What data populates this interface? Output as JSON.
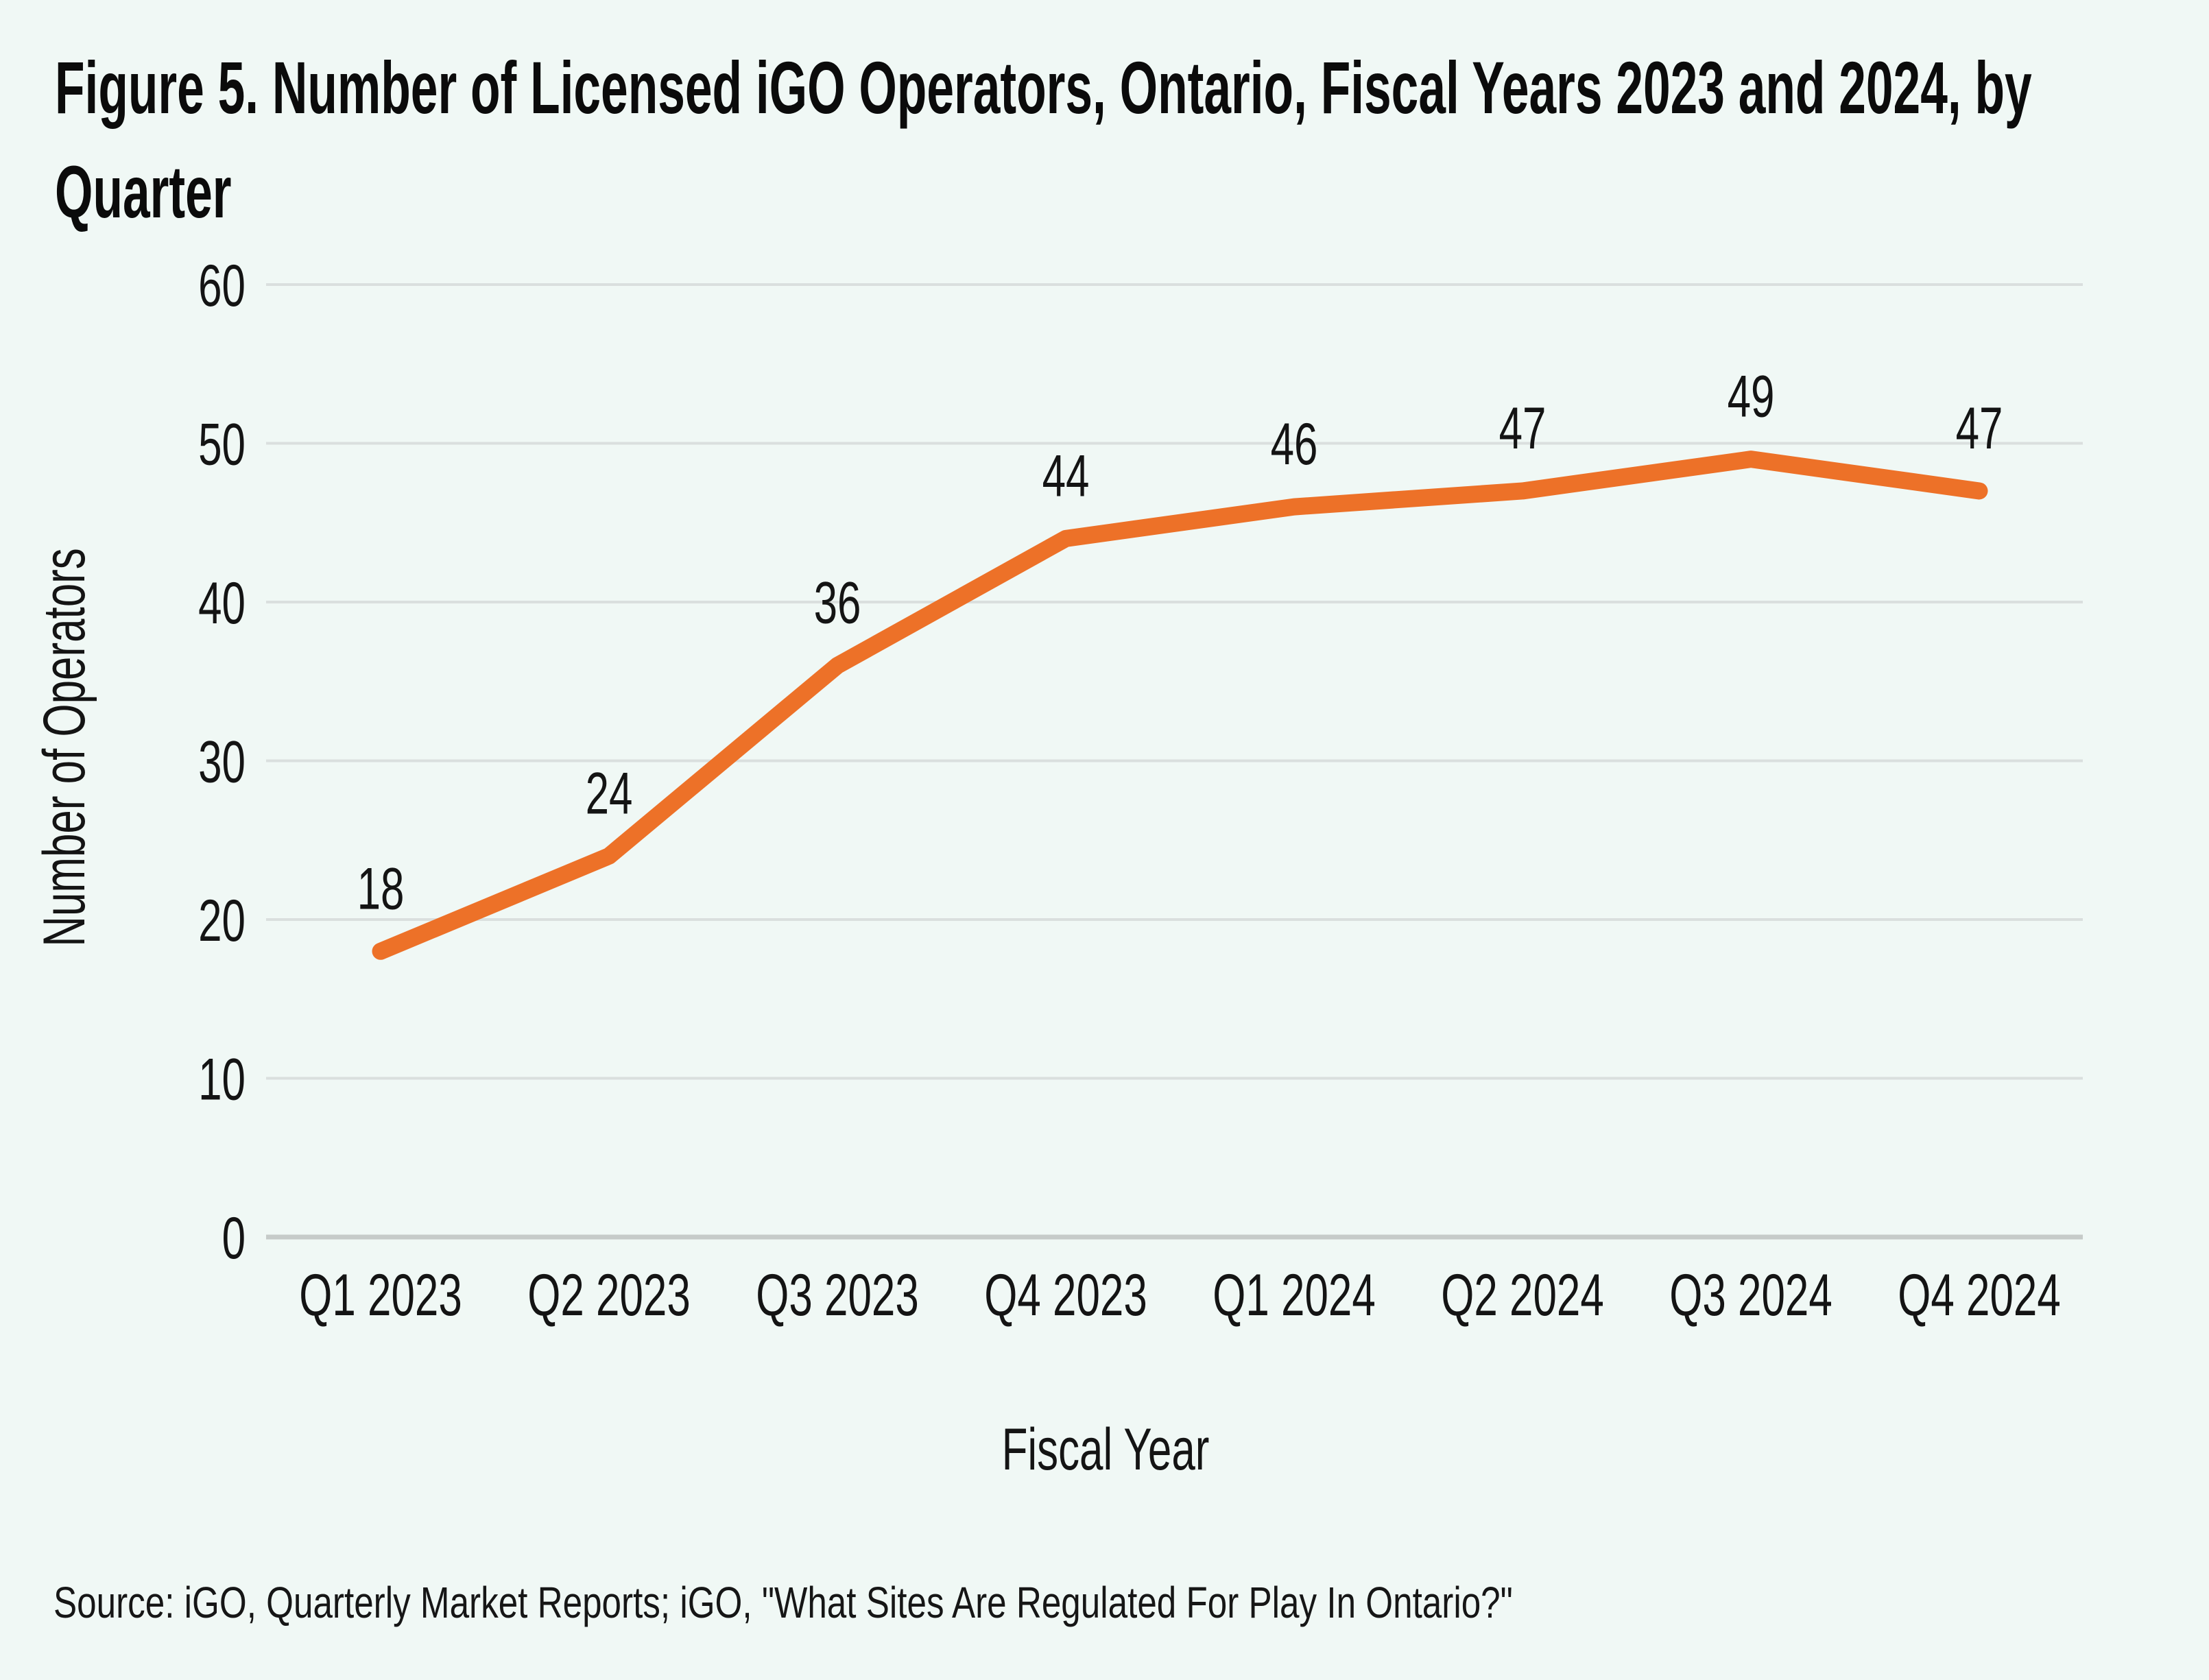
{
  "title_lines": [
    "Figure 5. Number of Licensed iGO Operators, Ontario, Fiscal Years 2023 and 2024, by",
    "Quarter"
  ],
  "source": "Source: iGO, Quarterly Market Reports; iGO, \"What Sites Are Regulated For Play In Ontario?\"",
  "chart_data": {
    "type": "line",
    "title": "Figure 5. Number of Licensed iGO Operators, Ontario, Fiscal Years 2023 and 2024, by Quarter",
    "categories": [
      "Q1 2023",
      "Q2 2023",
      "Q3 2023",
      "Q4 2023",
      "Q1 2024",
      "Q2 2024",
      "Q3 2024",
      "Q4 2024"
    ],
    "values": [
      18,
      24,
      36,
      44,
      46,
      47,
      49,
      47
    ],
    "data_labels": [
      "18",
      "24",
      "36",
      "44",
      "46",
      "47",
      "49",
      "47"
    ],
    "xlabel": "Fiscal Year",
    "ylabel": "Number of Operators",
    "ylim": [
      0,
      60
    ],
    "yticks": [
      0,
      10,
      20,
      30,
      40,
      50,
      60
    ],
    "grid": true,
    "legend": "none",
    "line_color": "#ED7128",
    "grid_color": "#DADFDE",
    "axis_line_color": "#C6CBC9",
    "label_color": "#141414",
    "background": "#F0F8F5"
  }
}
